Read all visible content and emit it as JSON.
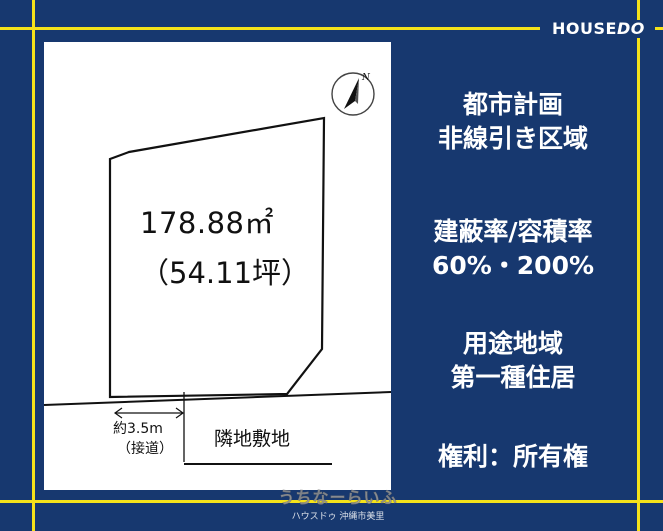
{
  "brand": {
    "name_prefix": "HOUSE",
    "name_suffix": "DO"
  },
  "plot": {
    "area_sqm": "178.88㎡",
    "area_tsubo": "（54.11坪）",
    "road_width": "約3.5m",
    "road_label": "（接道）",
    "neighbor_label": "隣地敷地",
    "compass_letter": "N"
  },
  "info": {
    "zoning_line1": "都市計画",
    "zoning_line2": "非線引き区域",
    "ratio_title": "建蔽率/容積率",
    "ratio_value": "60%・200%",
    "usage_title": "用途地域",
    "usage_value": "第一種住居",
    "rights": "権利：所有権"
  },
  "watermark": {
    "main": "うちなーらいふ",
    "sub": "ハウスドゥ 沖縄市美里"
  },
  "colors": {
    "background": "#17386f",
    "frame_lines": "#f4e21a",
    "panel": "#ffffff",
    "text_light": "#ffffff"
  }
}
